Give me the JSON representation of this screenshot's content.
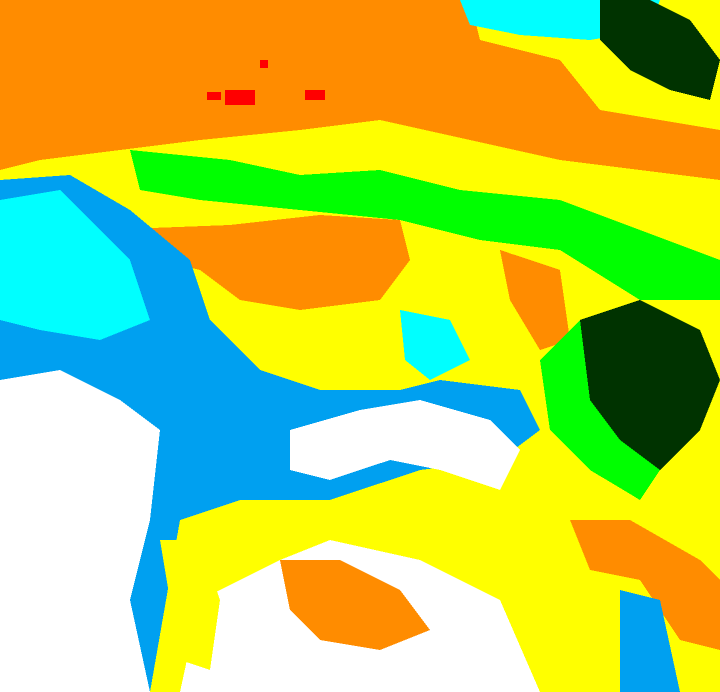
{
  "map": {
    "type": "classified-raster",
    "palette": {
      "red": "#ff0000",
      "orange": "#ff8c00",
      "yellow": "#ffff00",
      "green": "#00ff00",
      "dark_green": "#003300",
      "cyan": "#00ffff",
      "blue": "#00a0f0",
      "white": "#ffffff"
    }
  }
}
